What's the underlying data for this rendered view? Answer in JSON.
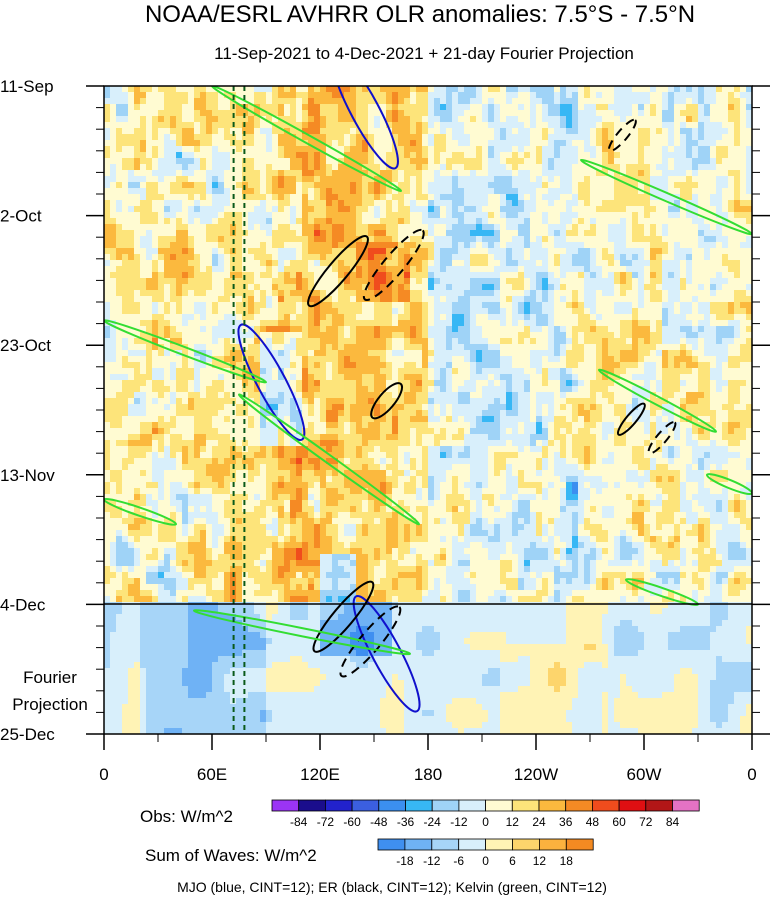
{
  "chart_data": {
    "type": "heatmap",
    "title": "NOAA/ESRL AVHRR OLR anomalies: 7.5°S - 7.5°N",
    "subtitle": "11-Sep-2021 to 4-Dec-2021 + 21-day Fourier Projection",
    "x_axis": {
      "ticks": [
        "0",
        "60E",
        "120E",
        "180",
        "120W",
        "60W",
        "0"
      ],
      "tick_values_deg_east": [
        0,
        60,
        120,
        180,
        240,
        300,
        360
      ]
    },
    "y_axis": {
      "ticks": [
        "11-Sep",
        "2-Oct",
        "23-Oct",
        "13-Nov",
        "4-Dec",
        "25-Dec"
      ],
      "reversed": true,
      "extra_label": [
        "Fourier",
        "Projection"
      ]
    },
    "observation_end": "4-Dec",
    "reference_lines_deg_east": [
      72,
      78
    ],
    "colorbars": [
      {
        "label": "Obs: W/m^2",
        "levels": [
          -84,
          -72,
          -60,
          -48,
          -36,
          -24,
          -12,
          0,
          12,
          24,
          36,
          48,
          60,
          72,
          84
        ],
        "colors": [
          "#9b34f5",
          "#1a0d8c",
          "#2222cc",
          "#3b5fe0",
          "#3b8ff0",
          "#37b7f5",
          "#9fd3f7",
          "#d8effb",
          "#fffbd2",
          "#fde47a",
          "#fbb93e",
          "#f58a24",
          "#f04c1d",
          "#df0f12",
          "#b21617",
          "#e472c4"
        ]
      },
      {
        "label": "Sum of Waves: W/m^2",
        "levels": [
          -18,
          -12,
          -6,
          0,
          6,
          12,
          18
        ],
        "colors": [
          "#3f8ff0",
          "#6fb2f5",
          "#a7d5f8",
          "#d8effb",
          "#fff3b5",
          "#fdd56c",
          "#fbb13e",
          "#f38a22"
        ]
      }
    ],
    "footer": "MJO (blue, CINT=12); ER (black, CINT=12); Kelvin (green, CINT=12)",
    "series": [
      {
        "name": "MJO",
        "color": "#1010cc",
        "contours": [
          {
            "center_lon": 145,
            "center_day": 4,
            "style": "solid"
          },
          {
            "center_lon": 93,
            "center_day": 48,
            "style": "solid"
          },
          {
            "center_lon": 157,
            "center_day": 92,
            "style": "solid"
          }
        ]
      },
      {
        "name": "ER",
        "color": "#000000",
        "contours": [
          {
            "center_lon": 130,
            "center_day": 30,
            "style": "solid"
          },
          {
            "center_lon": 161,
            "center_day": 29,
            "style": "dashed"
          },
          {
            "center_lon": 157,
            "center_day": 51,
            "style": "solid"
          },
          {
            "center_lon": 133,
            "center_day": 86,
            "style": "solid"
          },
          {
            "center_lon": 148,
            "center_day": 90,
            "style": "dashed"
          },
          {
            "center_lon": 293,
            "center_day": 54,
            "style": "solid"
          },
          {
            "center_lon": 310,
            "center_day": 57,
            "style": "dashed"
          },
          {
            "center_lon": 288,
            "center_day": 8,
            "style": "dashed"
          }
        ]
      },
      {
        "name": "Kelvin",
        "color": "#33dd33",
        "contours": [
          {
            "start_lon": 60,
            "start_day": 0,
            "end_lon": 165,
            "end_day": 17
          },
          {
            "start_lon": 0,
            "start_day": 38,
            "end_lon": 90,
            "end_day": 48
          },
          {
            "start_lon": 75,
            "start_day": 50,
            "end_lon": 175,
            "end_day": 71
          },
          {
            "start_lon": 0,
            "start_day": 67,
            "end_lon": 40,
            "end_day": 71
          },
          {
            "start_lon": 265,
            "start_day": 12,
            "end_lon": 360,
            "end_day": 24
          },
          {
            "start_lon": 275,
            "start_day": 46,
            "end_lon": 340,
            "end_day": 56
          },
          {
            "start_lon": 335,
            "start_day": 63,
            "end_lon": 360,
            "end_day": 66
          },
          {
            "start_lon": 50,
            "start_day": 85,
            "end_lon": 170,
            "end_day": 92
          },
          {
            "start_lon": 290,
            "start_day": 80,
            "end_lon": 330,
            "end_day": 84
          }
        ]
      }
    ]
  }
}
